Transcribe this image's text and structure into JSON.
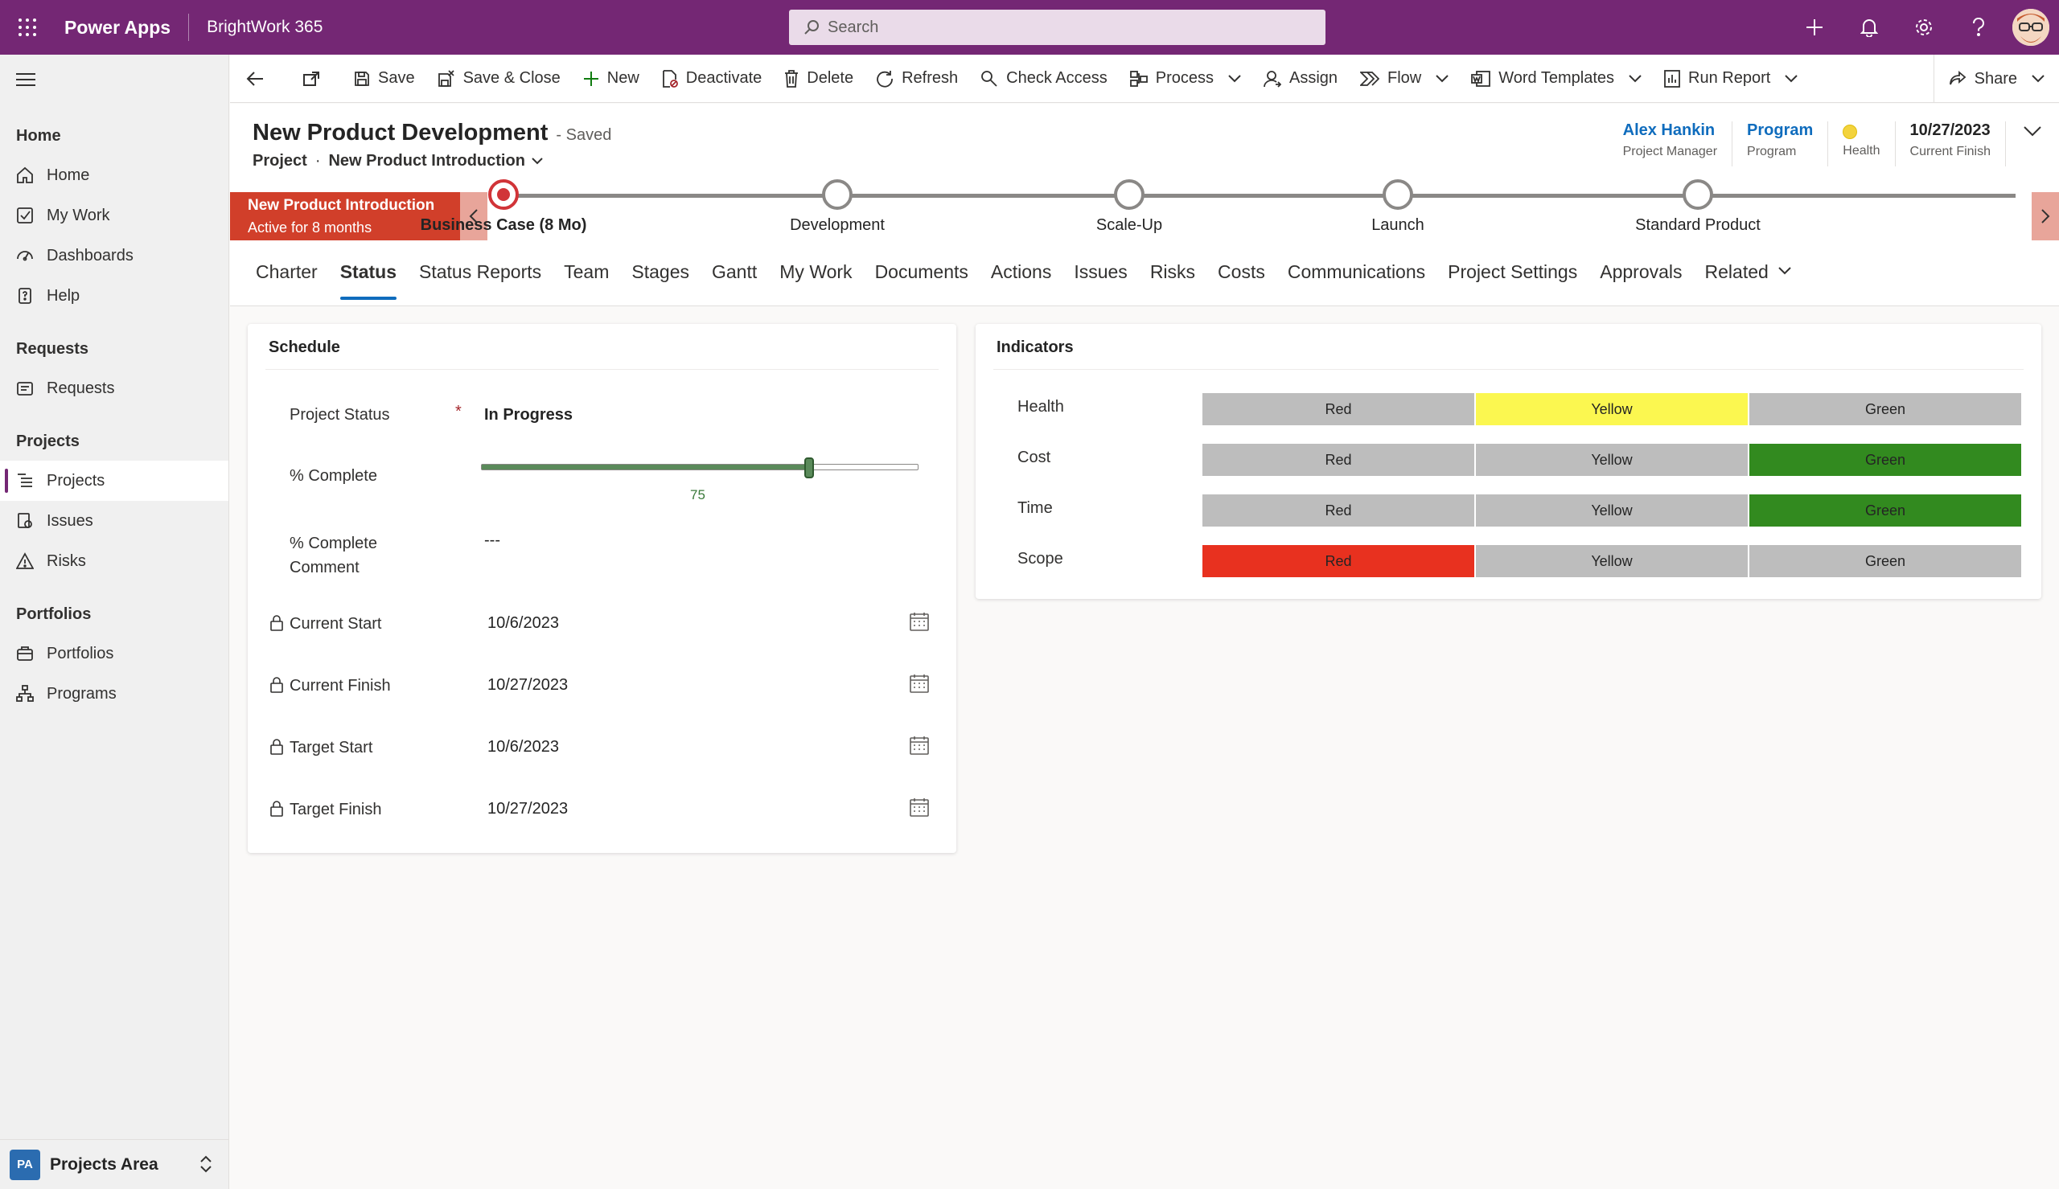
{
  "topbar": {
    "app_name": "Power Apps",
    "environment": "BrightWork 365",
    "search_placeholder": "Search"
  },
  "sidebar": {
    "groups": [
      {
        "label": "Home",
        "items": [
          "Home",
          "My Work",
          "Dashboards",
          "Help"
        ]
      },
      {
        "label": "Requests",
        "items": [
          "Requests"
        ]
      },
      {
        "label": "Projects",
        "items": [
          "Projects",
          "Issues",
          "Risks"
        ]
      },
      {
        "label": "Portfolios",
        "items": [
          "Portfolios",
          "Programs"
        ]
      }
    ],
    "active_item": "Projects",
    "area": {
      "badge": "PA",
      "label": "Projects Area"
    }
  },
  "commands": {
    "save": "Save",
    "save_close": "Save & Close",
    "new": "New",
    "deactivate": "Deactivate",
    "delete": "Delete",
    "refresh": "Refresh",
    "check_access": "Check Access",
    "process": "Process",
    "assign": "Assign",
    "flow": "Flow",
    "word_templates": "Word Templates",
    "run_report": "Run Report",
    "share": "Share"
  },
  "record": {
    "title": "New Product Development",
    "saved": "- Saved",
    "entity": "Project",
    "dot": "·",
    "form": "New Product Introduction",
    "header_fields": {
      "manager": {
        "value": "Alex Hankin",
        "label": "Project Manager"
      },
      "program": {
        "value": "Program",
        "label": "Program"
      },
      "health": {
        "label": "Health",
        "color": "#f3d33d"
      },
      "finish": {
        "value": "10/27/2023",
        "label": "Current Finish"
      }
    }
  },
  "bpf": {
    "active_name": "New Product Introduction",
    "active_duration": "Active for 8 months",
    "stages": [
      "Business Case  (8 Mo)",
      "Development",
      "Scale-Up",
      "Launch",
      "Standard Product"
    ],
    "active_stage_index": 0
  },
  "tabs": [
    "Charter",
    "Status",
    "Status Reports",
    "Team",
    "Stages",
    "Gantt",
    "My Work",
    "Documents",
    "Actions",
    "Issues",
    "Risks",
    "Costs",
    "Communications",
    "Project Settings",
    "Approvals",
    "Related"
  ],
  "active_tab": "Status",
  "schedule": {
    "title": "Schedule",
    "project_status_label": "Project Status",
    "required_mark": "*",
    "project_status": "In Progress",
    "complete_label": "% Complete",
    "complete_value": "75",
    "complete_fraction": 0.75,
    "comment_label_1": "% Complete",
    "comment_label_2": "Comment",
    "comment_value": "---",
    "dates": [
      {
        "label": "Current Start",
        "value": "10/6/2023"
      },
      {
        "label": "Current Finish",
        "value": "10/27/2023"
      },
      {
        "label": "Target Start",
        "value": "10/6/2023"
      },
      {
        "label": "Target Finish",
        "value": "10/27/2023"
      }
    ]
  },
  "indicators": {
    "title": "Indicators",
    "options": [
      "Red",
      "Yellow",
      "Green"
    ],
    "rows": [
      {
        "label": "Health",
        "selected": "Yellow"
      },
      {
        "label": "Cost",
        "selected": "Green"
      },
      {
        "label": "Time",
        "selected": "Green"
      },
      {
        "label": "Scope",
        "selected": "Red"
      }
    ],
    "colors": {
      "Red": "#e8311f",
      "Yellow": "#fbf750",
      "Green": "#328a1f",
      "none": "#bdbdbd"
    }
  }
}
